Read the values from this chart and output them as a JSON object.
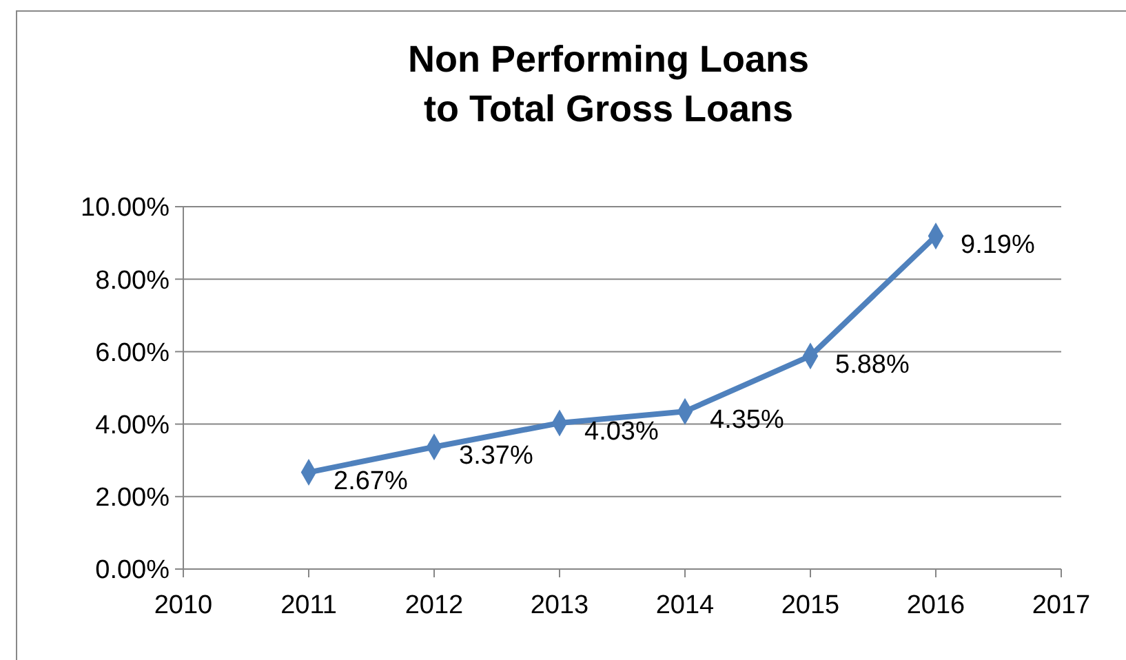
{
  "chart_data": {
    "type": "line",
    "title": "Non Performing Loans\nto Total Gross Loans",
    "x": [
      2011,
      2012,
      2013,
      2014,
      2015,
      2016
    ],
    "series": [
      {
        "color": "#4f81bd",
        "values": [
          2.67,
          3.37,
          4.03,
          4.35,
          5.88,
          9.19
        ],
        "value_labels": [
          "2.67%",
          "3.37%",
          "4.03%",
          "4.35%",
          "5.88%",
          "9.19%"
        ]
      }
    ],
    "xlim": [
      2010,
      2017
    ],
    "xticks": [
      2010,
      2011,
      2012,
      2013,
      2014,
      2015,
      2016,
      2017
    ],
    "ylim": [
      0,
      10
    ],
    "yticks": [
      {
        "value": 0,
        "label": "0.00%"
      },
      {
        "value": 2,
        "label": "2.00%"
      },
      {
        "value": 4,
        "label": "4.00%"
      },
      {
        "value": 6,
        "label": "6.00%"
      },
      {
        "value": 8,
        "label": "8.00%"
      },
      {
        "value": 10,
        "label": "10.00%"
      }
    ],
    "grid": "y",
    "marker": "diamond",
    "line_style": "solid"
  }
}
